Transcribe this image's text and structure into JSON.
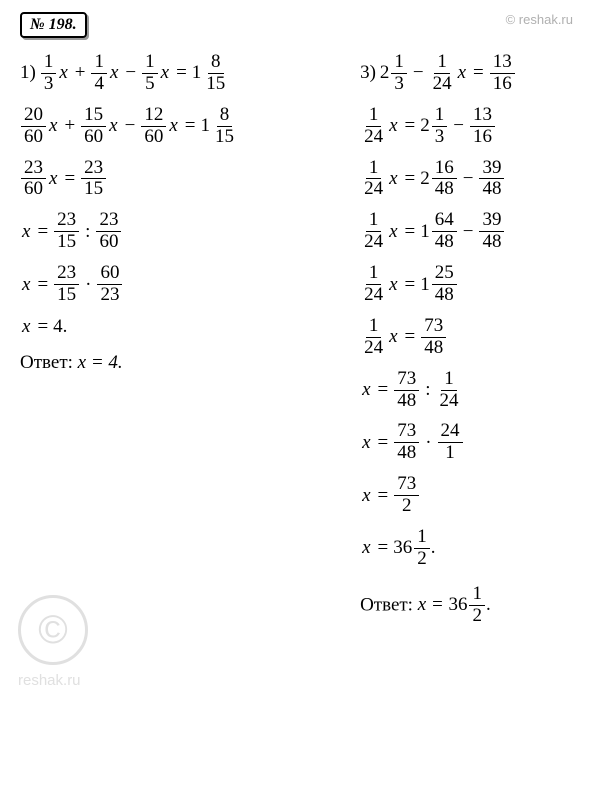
{
  "problem_number": "№ 198.",
  "watermark_top": "© reshak.ru",
  "watermark_c": "©",
  "watermark_reshak": "reshak.ru",
  "left": {
    "prefix": "1)",
    "l1": {
      "f1n": "1",
      "f1d": "3",
      "f2n": "1",
      "f2d": "4",
      "f3n": "1",
      "f3d": "5",
      "mw": "1",
      "mn": "8",
      "md": "15"
    },
    "l2": {
      "f1n": "20",
      "f1d": "60",
      "f2n": "15",
      "f2d": "60",
      "f3n": "12",
      "f3d": "60",
      "mw": "1",
      "mn": "8",
      "md": "15"
    },
    "l3": {
      "f1n": "23",
      "f1d": "60",
      "f2n": "23",
      "f2d": "15"
    },
    "l4": {
      "f1n": "23",
      "f1d": "15",
      "f2n": "23",
      "f2d": "60"
    },
    "l5": {
      "f1n": "23",
      "f1d": "15",
      "f2n": "60",
      "f2d": "23"
    },
    "l6": {
      "val": "4."
    },
    "answer_label": "Ответ: ",
    "answer_val": "x = 4."
  },
  "right": {
    "prefix": "3)",
    "l1": {
      "mw1": "2",
      "mn1": "1",
      "md1": "3",
      "f1n": "1",
      "f1d": "24",
      "f2n": "13",
      "f2d": "16"
    },
    "l2": {
      "f1n": "1",
      "f1d": "24",
      "mw": "2",
      "mn": "1",
      "md": "3",
      "f2n": "13",
      "f2d": "16"
    },
    "l3": {
      "f1n": "1",
      "f1d": "24",
      "mw": "2",
      "mn": "16",
      "md": "48",
      "f2n": "39",
      "f2d": "48"
    },
    "l4": {
      "f1n": "1",
      "f1d": "24",
      "mw": "1",
      "mn": "64",
      "md": "48",
      "f2n": "39",
      "f2d": "48"
    },
    "l5": {
      "f1n": "1",
      "f1d": "24",
      "mw": "1",
      "mn": "25",
      "md": "48"
    },
    "l6": {
      "f1n": "1",
      "f1d": "24",
      "f2n": "73",
      "f2d": "48"
    },
    "l7": {
      "f1n": "73",
      "f1d": "48",
      "f2n": "1",
      "f2d": "24"
    },
    "l8": {
      "f1n": "73",
      "f1d": "48",
      "f2n": "24",
      "f2d": "1"
    },
    "l9": {
      "f1n": "73",
      "f1d": "2"
    },
    "l10": {
      "mw": "36",
      "mn": "1",
      "md": "2"
    },
    "answer_label": "Ответ: ",
    "answer_expr_prefix": "x = ",
    "answer_mw": "36",
    "answer_mn": "1",
    "answer_md": "2",
    "answer_suffix": "."
  }
}
